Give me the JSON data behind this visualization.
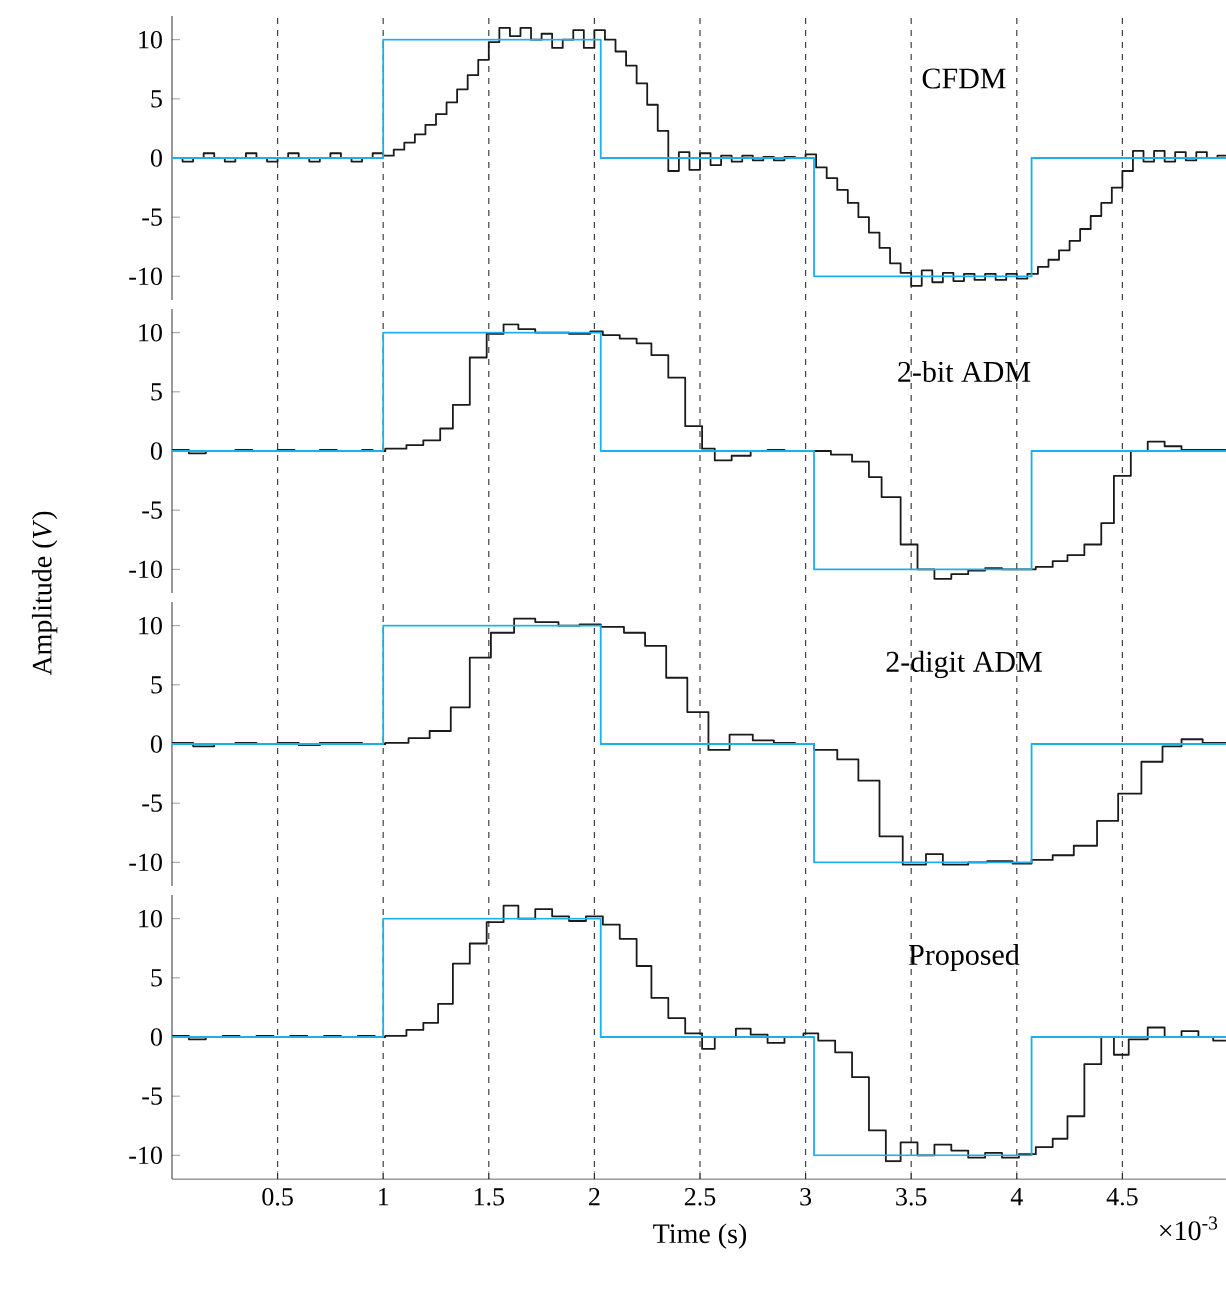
{
  "chart_data": [
    {
      "type": "step",
      "title": "CFDM",
      "ylim": [
        -12,
        12
      ],
      "xticks": [
        0.5,
        1,
        1.5,
        2,
        2.5,
        3,
        3.5,
        4,
        4.5
      ],
      "yticks": [
        -10,
        -5,
        0,
        5,
        10
      ],
      "grid": "x",
      "tick_labels": "y",
      "series": [
        {
          "color": "#1a1a1a",
          "x": [
            0,
            0.05,
            0.1,
            0.15,
            0.2,
            0.25,
            0.3,
            0.35,
            0.4,
            0.45,
            0.5,
            0.55,
            0.6,
            0.65,
            0.7,
            0.75,
            0.8,
            0.85,
            0.9,
            0.95,
            1.0,
            1.05,
            1.1,
            1.15,
            1.2,
            1.25,
            1.3,
            1.35,
            1.4,
            1.45,
            1.5,
            1.55,
            1.6,
            1.65,
            1.7,
            1.75,
            1.8,
            1.85,
            1.9,
            1.95,
            2.0,
            2.05,
            2.1,
            2.15,
            2.2,
            2.25,
            2.3,
            2.35,
            2.4,
            2.45,
            2.5,
            2.55,
            2.6,
            2.65,
            2.7,
            2.75,
            2.8,
            2.85,
            2.9,
            2.95,
            3.0,
            3.05,
            3.1,
            3.15,
            3.2,
            3.25,
            3.3,
            3.35,
            3.4,
            3.45,
            3.5,
            3.55,
            3.6,
            3.65,
            3.7,
            3.75,
            3.8,
            3.85,
            3.9,
            3.95,
            4.0,
            4.05,
            4.1,
            4.15,
            4.2,
            4.25,
            4.3,
            4.35,
            4.4,
            4.45,
            4.5,
            4.55,
            4.6,
            4.65,
            4.7,
            4.75,
            4.8,
            4.85,
            4.9,
            4.95,
            5.0
          ],
          "values": [
            0,
            -0.3,
            0,
            0.4,
            0,
            -0.3,
            0,
            0.4,
            0,
            -0.3,
            0,
            0.4,
            0,
            -0.3,
            0,
            0.4,
            0,
            -0.3,
            0,
            0.4,
            0.2,
            0.7,
            1.3,
            2.0,
            2.8,
            3.7,
            4.7,
            5.8,
            7.0,
            8.3,
            9.8,
            11,
            10.3,
            11,
            10,
            10.5,
            9.3,
            10,
            10.8,
            9.3,
            10.8,
            10,
            9,
            7.8,
            6.3,
            4.5,
            2.3,
            -1.1,
            0.5,
            -1,
            0.4,
            -0.6,
            0.2,
            -0.3,
            0.2,
            -0.2,
            0.1,
            -0.2,
            0.1,
            0,
            0.3,
            -0.8,
            -1.7,
            -2.7,
            -3.8,
            -5,
            -6.3,
            -7.6,
            -8.9,
            -9.7,
            -10.8,
            -9.5,
            -10.5,
            -9.7,
            -10.4,
            -9.8,
            -10.3,
            -9.8,
            -10.3,
            -9.8,
            -10.2,
            -9.8,
            -9.2,
            -8.6,
            -7.8,
            -7,
            -6,
            -4.9,
            -3.8,
            -2.5,
            -1.1,
            0.6,
            -0.3,
            0.6,
            -0.3,
            0.5,
            -0.2,
            0.5,
            0,
            0.2,
            0.2
          ]
        },
        {
          "color": "#1ab0e8",
          "x": [
            0,
            1,
            2.03,
            3.04,
            4.07,
            5
          ],
          "values": [
            0,
            10,
            0,
            -10,
            0,
            0
          ]
        }
      ]
    },
    {
      "type": "step",
      "title": "2-bit ADM",
      "ylabel": "Amplitude (*V*)",
      "ylim": [
        -12,
        12
      ],
      "xticks": [
        0.5,
        1,
        1.5,
        2,
        2.5,
        3,
        3.5,
        4,
        4.5
      ],
      "yticks": [
        -10,
        -5,
        0,
        5,
        10
      ],
      "grid": "x",
      "tick_labels": "y",
      "series": [
        {
          "color": "#1a1a1a",
          "x": [
            0,
            0.08,
            0.16,
            0.3,
            0.38,
            0.5,
            0.58,
            0.7,
            0.78,
            0.9,
            0.95,
            1.01,
            1.11,
            1.19,
            1.27,
            1.33,
            1.41,
            1.49,
            1.57,
            1.64,
            1.72,
            1.88,
            1.98,
            2.04,
            2.12,
            2.2,
            2.27,
            2.35,
            2.43,
            2.51,
            2.57,
            2.65,
            2.74,
            2.82,
            2.9,
            3.01,
            3.12,
            3.22,
            3.3,
            3.36,
            3.45,
            3.53,
            3.61,
            3.69,
            3.77,
            3.85,
            3.93,
            4.01,
            4.09,
            4.17,
            4.24,
            4.32,
            4.4,
            4.46,
            4.54,
            4.62,
            4.7,
            4.78,
            5.0
          ],
          "values": [
            0.1,
            -0.2,
            0,
            0.1,
            0,
            0.1,
            0,
            0.1,
            0,
            0.1,
            0,
            0.2,
            0.5,
            0.9,
            1.9,
            3.9,
            7.9,
            9.9,
            10.7,
            10.3,
            10,
            9.9,
            10.1,
            9.8,
            9.5,
            9.1,
            8.1,
            6.2,
            2.1,
            0.2,
            -0.8,
            -0.4,
            0,
            0.1,
            0,
            0,
            -0.3,
            -0.9,
            -2.2,
            -3.9,
            -7.9,
            -10,
            -10.8,
            -10.4,
            -10.1,
            -9.9,
            -10,
            -10,
            -9.8,
            -9.3,
            -8.8,
            -7.9,
            -6.1,
            -2.1,
            0,
            0.8,
            0.4,
            0.1,
            0.1
          ]
        },
        {
          "color": "#1ab0e8",
          "x": [
            0,
            1,
            2.03,
            3.04,
            4.07,
            5
          ],
          "values": [
            0,
            10,
            0,
            -10,
            0,
            0
          ]
        }
      ]
    },
    {
      "type": "step",
      "title": "2-digit ADM",
      "ylim": [
        -12,
        12
      ],
      "xticks": [
        0.5,
        1,
        1.5,
        2,
        2.5,
        3,
        3.5,
        4,
        4.5
      ],
      "yticks": [
        -10,
        -5,
        0,
        5,
        10
      ],
      "grid": "x",
      "tick_labels": "y",
      "series": [
        {
          "color": "#1a1a1a",
          "x": [
            0,
            0.1,
            0.2,
            0.3,
            0.4,
            0.5,
            0.6,
            0.7,
            0.8,
            0.9,
            1.01,
            1.12,
            1.22,
            1.32,
            1.41,
            1.51,
            1.62,
            1.72,
            1.83,
            1.93,
            2.03,
            2.14,
            2.24,
            2.34,
            2.44,
            2.54,
            2.64,
            2.75,
            2.85,
            2.95,
            3.04,
            3.15,
            3.25,
            3.35,
            3.46,
            3.57,
            3.65,
            3.77,
            3.86,
            3.98,
            4.07,
            4.17,
            4.27,
            4.38,
            4.48,
            4.59,
            4.69,
            4.78,
            4.88,
            5.0
          ],
          "values": [
            0.1,
            -0.2,
            0,
            0.1,
            0,
            0.1,
            -0.1,
            0.1,
            0.1,
            0,
            0.1,
            0.5,
            1.1,
            3.1,
            7.3,
            9.4,
            10.6,
            10.3,
            10,
            10.1,
            9.9,
            9.4,
            8.3,
            5.6,
            2.7,
            -0.5,
            0.8,
            0.3,
            0.1,
            0,
            -0.5,
            -1.3,
            -3.1,
            -7.8,
            -10.2,
            -9.3,
            -10.2,
            -10,
            -9.9,
            -10.1,
            -9.8,
            -9.4,
            -8.6,
            -6.5,
            -4.2,
            -1.5,
            -0.2,
            0.4,
            0.1,
            0.1
          ]
        },
        {
          "color": "#1ab0e8",
          "x": [
            0,
            1,
            2.03,
            3.04,
            4.07,
            5
          ],
          "values": [
            0,
            10,
            0,
            -10,
            0,
            0
          ]
        }
      ]
    },
    {
      "type": "step",
      "title": "Proposed",
      "xlabel": "Time (s)",
      "annotations": [
        "×10$^{-3}$"
      ],
      "xlim": [
        0,
        5
      ],
      "ylim": [
        -12,
        12
      ],
      "xticks": [
        0.5,
        1,
        1.5,
        2,
        2.5,
        3,
        3.5,
        4,
        4.5
      ],
      "yticks": [
        -10,
        -5,
        0,
        5,
        10
      ],
      "grid": "x",
      "series": [
        {
          "color": "#1a1a1a",
          "x": [
            0,
            0.08,
            0.16,
            0.24,
            0.32,
            0.4,
            0.48,
            0.56,
            0.64,
            0.72,
            0.8,
            0.88,
            0.96,
            1.01,
            1.11,
            1.19,
            1.26,
            1.33,
            1.41,
            1.49,
            1.57,
            1.64,
            1.72,
            1.8,
            1.88,
            1.96,
            2.04,
            2.12,
            2.2,
            2.27,
            2.35,
            2.43,
            2.51,
            2.57,
            2.67,
            2.74,
            2.82,
            2.9,
            2.99,
            3.06,
            3.14,
            3.22,
            3.3,
            3.38,
            3.45,
            3.53,
            3.61,
            3.69,
            3.77,
            3.85,
            3.93,
            4.01,
            4.09,
            4.17,
            4.24,
            4.32,
            4.4,
            4.46,
            4.53,
            4.62,
            4.7,
            4.78,
            4.86,
            4.93,
            5.0
          ],
          "values": [
            0.1,
            -0.2,
            0,
            0.1,
            0,
            0.1,
            0,
            0.1,
            0,
            0.1,
            0,
            0.1,
            0,
            0.1,
            0.6,
            1.2,
            2.8,
            6.2,
            7.9,
            9.7,
            11.1,
            10,
            10.8,
            10.2,
            9.8,
            10.2,
            9.5,
            8.3,
            6,
            3.3,
            1.6,
            0.3,
            -1,
            0,
            0.7,
            0.2,
            -0.5,
            0,
            0.3,
            -0.3,
            -1.3,
            -3.4,
            -7.9,
            -10.5,
            -8.9,
            -10,
            -9.1,
            -9.6,
            -10.2,
            -9.8,
            -10.2,
            -9.9,
            -9.3,
            -8.6,
            -6.7,
            -2.3,
            0,
            -1.5,
            -0.2,
            0.8,
            0,
            0.5,
            0,
            -0.3,
            -0.3
          ]
        },
        {
          "color": "#1ab0e8",
          "x": [
            0,
            1,
            2.03,
            3.04,
            4.07,
            5
          ],
          "values": [
            0,
            10,
            0,
            -10,
            0,
            0
          ]
        }
      ]
    }
  ]
}
